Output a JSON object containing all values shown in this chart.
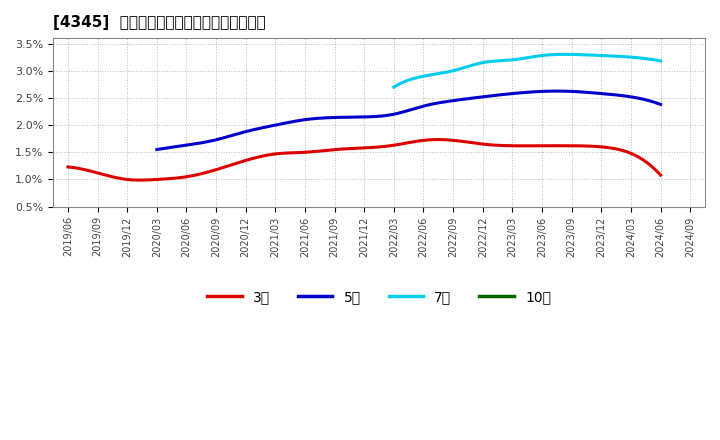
{
  "title": "[4345]  経常利益マージンの標準偏差の推移",
  "ylim": [
    0.005,
    0.036
  ],
  "yticks": [
    0.005,
    0.01,
    0.015,
    0.02,
    0.025,
    0.03,
    0.035
  ],
  "ytick_labels": [
    "0.5%",
    "1.0%",
    "1.5%",
    "2.0%",
    "2.5%",
    "3.0%",
    "3.5%"
  ],
  "background_color": "#ffffff",
  "plot_background": "#ffffff",
  "grid_color": "#bbbbbb",
  "legend": [
    "3年",
    "5年",
    "7年",
    "10年"
  ],
  "line_colors": [
    "#dd0000",
    "#0000cc",
    "#00ccee",
    "#006600"
  ],
  "line_width": 2.2,
  "x_labels": [
    "2019/06",
    "2019/09",
    "2019/12",
    "2020/03",
    "2020/06",
    "2020/09",
    "2020/12",
    "2021/03",
    "2021/06",
    "2021/09",
    "2021/12",
    "2022/03",
    "2022/06",
    "2022/09",
    "2022/12",
    "2023/03",
    "2023/06",
    "2023/09",
    "2023/12",
    "2024/03",
    "2024/06",
    "2024/09"
  ],
  "series_3y": [
    0.0123,
    0.0112,
    0.01,
    0.01,
    0.0105,
    0.0118,
    0.0135,
    0.0147,
    0.015,
    0.0155,
    0.0158,
    0.0163,
    0.0172,
    0.0172,
    0.0165,
    0.0162,
    0.0162,
    0.0162,
    0.016,
    0.0148,
    0.0108,
    null
  ],
  "series_5y": [
    null,
    null,
    null,
    0.0155,
    0.0163,
    0.0173,
    0.0188,
    0.02,
    0.021,
    0.0214,
    0.0215,
    0.022,
    0.0235,
    0.0245,
    0.0252,
    0.0258,
    0.0262,
    0.0262,
    0.0258,
    0.0252,
    0.0238,
    null
  ],
  "series_7y": [
    null,
    null,
    null,
    null,
    null,
    null,
    null,
    null,
    null,
    null,
    null,
    0.027,
    0.029,
    0.03,
    0.0315,
    0.032,
    0.0328,
    0.033,
    0.0328,
    0.0325,
    0.0318,
    null
  ],
  "series_10y": [
    null,
    null,
    null,
    null,
    null,
    null,
    null,
    null,
    null,
    null,
    null,
    null,
    null,
    null,
    null,
    null,
    null,
    null,
    null,
    null,
    null,
    null
  ]
}
